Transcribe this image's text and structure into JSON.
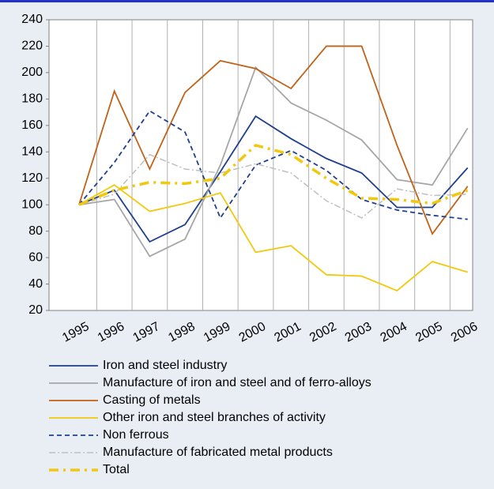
{
  "chart_data": {
    "type": "line",
    "categories": [
      "1995",
      "1996",
      "1997",
      "1998",
      "1999",
      "2000",
      "2001",
      "2002",
      "2003",
      "2004",
      "2005",
      "2006"
    ],
    "ylim": [
      20,
      240
    ],
    "yticks": [
      20,
      40,
      60,
      80,
      100,
      120,
      140,
      160,
      180,
      200,
      220,
      240
    ],
    "grid": true,
    "series": [
      {
        "name": "Iron and steel industry",
        "color": "#1f3f8f",
        "values": [
          100,
          111,
          72,
          85,
          125,
          167,
          150,
          135,
          124,
          98,
          98,
          128
        ]
      },
      {
        "name": "Manufacture of iron and steel and of ferro-alloys",
        "color": "#a6a6a6",
        "values": [
          100,
          104,
          61,
          74,
          130,
          204,
          177,
          164,
          149,
          119,
          115,
          158
        ]
      },
      {
        "name": "Casting of metals",
        "color": "#c0631a",
        "values": [
          100,
          186,
          127,
          185,
          209,
          203,
          188,
          220,
          220,
          145,
          78,
          114
        ]
      },
      {
        "name": "Other iron and steel branches of activity",
        "color": "#f2c80f",
        "values": [
          100,
          115,
          95,
          101,
          109,
          64,
          69,
          47,
          46,
          35,
          57,
          49
        ]
      },
      {
        "name": "Non ferrous",
        "color": "#1f3f8f",
        "values": [
          100,
          132,
          171,
          155,
          90,
          130,
          141,
          126,
          104,
          96,
          92,
          89
        ]
      },
      {
        "name": "Manufacture of fabricated metal products",
        "color": "#bfbfbf",
        "values": [
          100,
          108,
          138,
          127,
          124,
          131,
          124,
          103,
          90,
          112,
          107,
          108
        ]
      },
      {
        "name": "Total",
        "color": "#f2c80f",
        "values": [
          100,
          111,
          117,
          116,
          120,
          145,
          138,
          120,
          105,
          104,
          101,
          111
        ]
      }
    ]
  }
}
